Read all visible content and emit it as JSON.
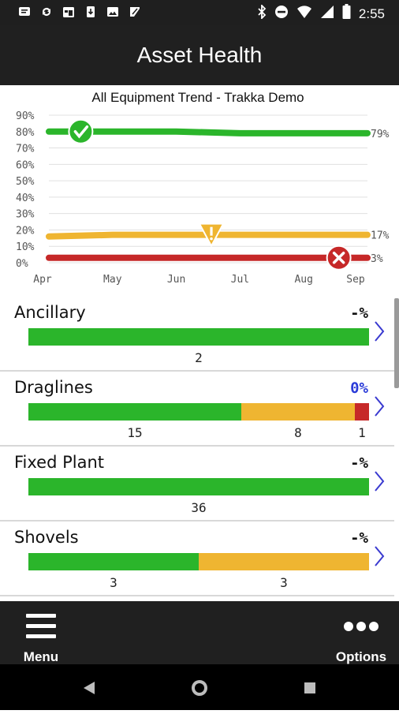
{
  "status_bar": {
    "time": "2:55",
    "left_icons": [
      "message-icon",
      "sync-icon",
      "calendar-icon",
      "download-icon",
      "image-icon",
      "send-icon"
    ],
    "right_icons": [
      "bluetooth-icon",
      "dnd-icon",
      "wifi-icon",
      "signal-icon",
      "battery-icon"
    ]
  },
  "header": {
    "title": "Asset Health"
  },
  "chart_data": {
    "type": "line",
    "title": "All Equipment Trend - Trakka Demo",
    "categories": [
      "Apr",
      "May",
      "Jun",
      "Jul",
      "Aug",
      "Sep"
    ],
    "y_ticks": [
      "0%",
      "10%",
      "20%",
      "30%",
      "40%",
      "50%",
      "60%",
      "70%",
      "80%",
      "90%"
    ],
    "ylim": [
      0,
      90
    ],
    "grid": true,
    "series": [
      {
        "color": "#2bb52b",
        "values": [
          80,
          80,
          80,
          79,
          79,
          79
        ],
        "end_label": "79%",
        "marker": "check-icon",
        "marker_x": 0.5
      },
      {
        "color": "#efb531",
        "values": [
          16,
          17,
          17,
          17,
          17,
          17
        ],
        "end_label": "17%",
        "marker": "warning-icon",
        "marker_x": 2.55
      },
      {
        "color": "#c62828",
        "values": [
          3,
          3,
          3,
          3,
          3,
          3
        ],
        "end_label": "3%",
        "marker": "error-icon",
        "marker_x": 4.55
      }
    ]
  },
  "categories_list": [
    {
      "name": "Ancillary",
      "percent": "-%",
      "percent_highlight": false,
      "green": 2,
      "yellow": 0,
      "red": 0,
      "labels": [
        "2"
      ]
    },
    {
      "name": "Draglines",
      "percent": "0%",
      "percent_highlight": true,
      "green": 15,
      "yellow": 8,
      "red": 1,
      "labels": [
        "15",
        "8",
        "1"
      ]
    },
    {
      "name": "Fixed Plant",
      "percent": "-%",
      "percent_highlight": false,
      "green": 36,
      "yellow": 0,
      "red": 0,
      "labels": [
        "36"
      ]
    },
    {
      "name": "Shovels",
      "percent": "-%",
      "percent_highlight": false,
      "green": 3,
      "yellow": 3,
      "red": 0,
      "labels": [
        "3",
        "3"
      ]
    }
  ],
  "bottom_bar": {
    "menu_label": "Menu",
    "options_label": "Options"
  },
  "colors": {
    "green": "#2bb52b",
    "yellow": "#efb531",
    "red": "#c62828",
    "bar_bg": "#202020"
  }
}
